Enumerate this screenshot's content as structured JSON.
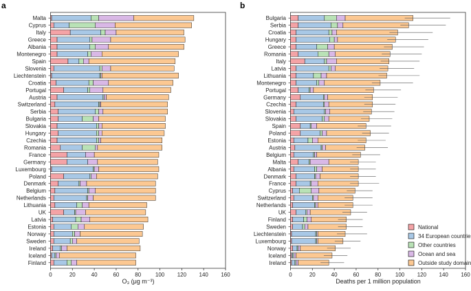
{
  "colors": {
    "National": "#f4a3a6",
    "34 European countries": "#a8c8e6",
    "Other countries": "#b9e2b6",
    "Ocean and sea": "#d9b8e6",
    "Outside study domain": "#fcc892"
  },
  "legend": [
    "National",
    "34 European countries",
    "Other countries",
    "Ocean and sea",
    "Outside study domain"
  ],
  "chart_data": [
    {
      "type": "bar",
      "orientation": "horizontal",
      "stacked": true,
      "panel_label": "a",
      "xlabel": "O₃ (μg m⁻³)",
      "xlim": [
        0,
        160
      ],
      "xticks": [
        0,
        20,
        40,
        60,
        80,
        100,
        120,
        140,
        160
      ],
      "categories": [
        "Malta",
        "Cyprus",
        "Italy",
        "Greece",
        "Albania",
        "Montenegro",
        "Spain",
        "Slovenia",
        "Liechtenstein",
        "Croatia",
        "Portugal",
        "Austria",
        "Switzerland",
        "Serbia",
        "Bulgaria",
        "Slovakia",
        "Hungary",
        "Czechia",
        "Romania",
        "France",
        "Germany",
        "Luxembourg",
        "Poland",
        "Denmark",
        "Belgium",
        "Netherlands",
        "Lithuania",
        "UK",
        "Latvia",
        "Estonia",
        "Norway",
        "Sweden",
        "Ireland",
        "Iceland",
        "Finland"
      ],
      "series": [
        {
          "name": "National",
          "values": [
            1,
            3,
            18,
            6,
            6,
            6,
            16,
            3,
            1,
            5,
            12,
            6,
            4,
            7,
            7,
            6,
            7,
            6,
            9,
            15,
            15,
            1,
            12,
            7,
            4,
            3,
            4,
            12,
            2,
            3,
            3,
            3,
            2,
            1,
            3
          ]
        },
        {
          "name": "34 European countries",
          "values": [
            36,
            14,
            28,
            30,
            30,
            28,
            10,
            42,
            44,
            30,
            22,
            42,
            40,
            34,
            22,
            36,
            35,
            36,
            20,
            17,
            19,
            38,
            24,
            19,
            30,
            30,
            20,
            10,
            21,
            16,
            17,
            15,
            7,
            3,
            12
          ]
        },
        {
          "name": "Other countries",
          "values": [
            7,
            24,
            4,
            2,
            5,
            3,
            4,
            2,
            1,
            4,
            2,
            1,
            1,
            3,
            10,
            2,
            2,
            2,
            12,
            0,
            0,
            1,
            1,
            1,
            1,
            1,
            5,
            1,
            5,
            6,
            2,
            2,
            1,
            1,
            4
          ]
        },
        {
          "name": "Ocean and sea",
          "values": [
            32,
            18,
            10,
            17,
            12,
            10,
            5,
            8,
            1,
            14,
            12,
            2,
            1,
            4,
            5,
            3,
            3,
            2,
            2,
            8,
            9,
            4,
            5,
            6,
            6,
            5,
            6,
            9,
            8,
            6,
            5,
            4,
            5,
            3,
            5
          ]
        },
        {
          "name": "Outside study domain",
          "values": [
            55,
            70,
            62,
            68,
            69,
            70,
            79,
            58,
            70,
            59,
            62,
            57,
            61,
            59,
            61,
            58,
            57,
            56,
            59,
            59,
            55,
            55,
            56,
            63,
            55,
            57,
            53,
            55,
            53,
            54,
            57,
            57,
            67,
            70,
            54
          ]
        }
      ],
      "totals": [
        131,
        129,
        122,
        123,
        122,
        117,
        114,
        113,
        117,
        112,
        110,
        108,
        107,
        107,
        105,
        105,
        104,
        102,
        102,
        99,
        98,
        99,
        98,
        96,
        96,
        96,
        88,
        87,
        89,
        85,
        84,
        81,
        82,
        78,
        78
      ]
    },
    {
      "type": "bar",
      "orientation": "horizontal",
      "stacked": true,
      "error_bars": true,
      "panel_label": "b",
      "xlabel": "Deaths per 1 million population",
      "xlim": [
        0,
        160
      ],
      "xticks": [
        0,
        20,
        40,
        60,
        80,
        100,
        120,
        140,
        160
      ],
      "categories": [
        "Bulgaria",
        "Serbia",
        "Croatia",
        "Hungary",
        "Greece",
        "Romania",
        "Italy",
        "Latvia",
        "Lithuania",
        "Montenegro",
        "Portugal",
        "Germany",
        "Czechia",
        "Slovenia",
        "Slovakia",
        "Spain",
        "Poland",
        "Estonia",
        "Austria",
        "Belgium",
        "Malta",
        "Albania",
        "Denmark",
        "France",
        "Cyprus",
        "Switzerland",
        "Netherlands",
        "UK",
        "Finland",
        "Sweden",
        "Liechtenstein",
        "Luxembourg",
        "Norway",
        "Iceland",
        "Ireland"
      ],
      "series": [
        {
          "name": "National",
          "values": [
            7,
            7,
            5,
            5,
            5,
            7,
            13,
            5,
            5,
            5,
            7,
            9,
            5,
            3,
            5,
            9,
            9,
            3,
            4,
            3,
            7,
            3,
            5,
            5,
            2,
            3,
            2,
            5,
            2,
            2,
            1,
            1,
            2,
            1,
            1
          ]
        },
        {
          "name": "34 European countries",
          "values": [
            24,
            30,
            30,
            31,
            19,
            18,
            18,
            30,
            16,
            19,
            10,
            21,
            25,
            28,
            24,
            9,
            18,
            13,
            24,
            18,
            10,
            19,
            17,
            13,
            6,
            17,
            20,
            9,
            10,
            9,
            22,
            22,
            4,
            1,
            3
          ]
        },
        {
          "name": "Other countries",
          "values": [
            11,
            6,
            3,
            4,
            10,
            10,
            2,
            2,
            7,
            2,
            1,
            1,
            1,
            1,
            2,
            1,
            2,
            4,
            1,
            1,
            1,
            2,
            1,
            1,
            11,
            1,
            1,
            1,
            3,
            2,
            1,
            1,
            1,
            1,
            1
          ]
        },
        {
          "name": "Ocean and sea",
          "values": [
            8,
            5,
            4,
            3,
            6,
            6,
            9,
            4,
            5,
            5,
            3,
            3,
            4,
            4,
            4,
            5,
            4,
            5,
            3,
            2,
            17,
            5,
            4,
            6,
            7,
            4,
            2,
            3,
            4,
            3,
            1,
            1,
            2,
            2,
            2
          ]
        },
        {
          "name": "Outside study domain",
          "values": [
            62,
            60,
            56,
            53,
            53,
            50,
            48,
            48,
            55,
            51,
            55,
            41,
            40,
            38,
            37,
            45,
            40,
            44,
            36,
            40,
            27,
            33,
            35,
            37,
            33,
            32,
            32,
            37,
            32,
            35,
            25,
            23,
            32,
            33,
            28
          ]
        }
      ],
      "error_upper": [
        146,
        142,
        130,
        126,
        122,
        120,
        118,
        113,
        118,
        112,
        101,
        98,
        96,
        95,
        93,
        92,
        90,
        87,
        89,
        82,
        78,
        78,
        78,
        81,
        75,
        75,
        75,
        70,
        66,
        66,
        70,
        64,
        55,
        52,
        49
      ]
    }
  ]
}
